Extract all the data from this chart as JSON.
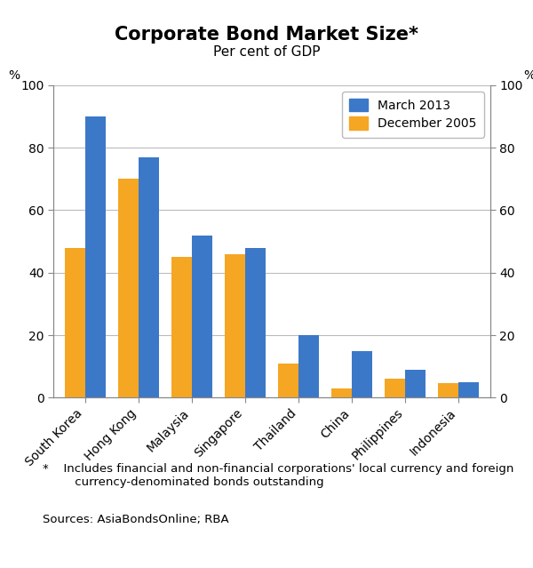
{
  "title": "Corporate Bond Market Size*",
  "subtitle": "Per cent of GDP",
  "categories": [
    "South Korea",
    "Hong Kong",
    "Malaysia",
    "Singapore",
    "Thailand",
    "China",
    "Philippines",
    "Indonesia"
  ],
  "march_2013": [
    90,
    77,
    52,
    48,
    20,
    15,
    9,
    5
  ],
  "december_2005": [
    48,
    70,
    45,
    46,
    11,
    3,
    6,
    4.5
  ],
  "bar_color_march": "#3c78c8",
  "bar_color_dec": "#f5a623",
  "ylim": [
    0,
    100
  ],
  "yticks": [
    0,
    20,
    40,
    60,
    80,
    100
  ],
  "ylabel_left": "%",
  "ylabel_right": "%",
  "legend_march": "March 2013",
  "legend_dec": "December 2005",
  "footnote_star": "*",
  "footnote_text": "  Includes financial and non-financial corporations' local currency and foreign\n     currency-denominated bonds outstanding",
  "sources": "Sources: AsiaBondsOnline; RBA",
  "background_color": "#ffffff",
  "grid_color": "#bbbbbb",
  "bar_width": 0.38,
  "title_fontsize": 15,
  "subtitle_fontsize": 11,
  "tick_fontsize": 10,
  "legend_fontsize": 10,
  "footnote_fontsize": 9.5
}
